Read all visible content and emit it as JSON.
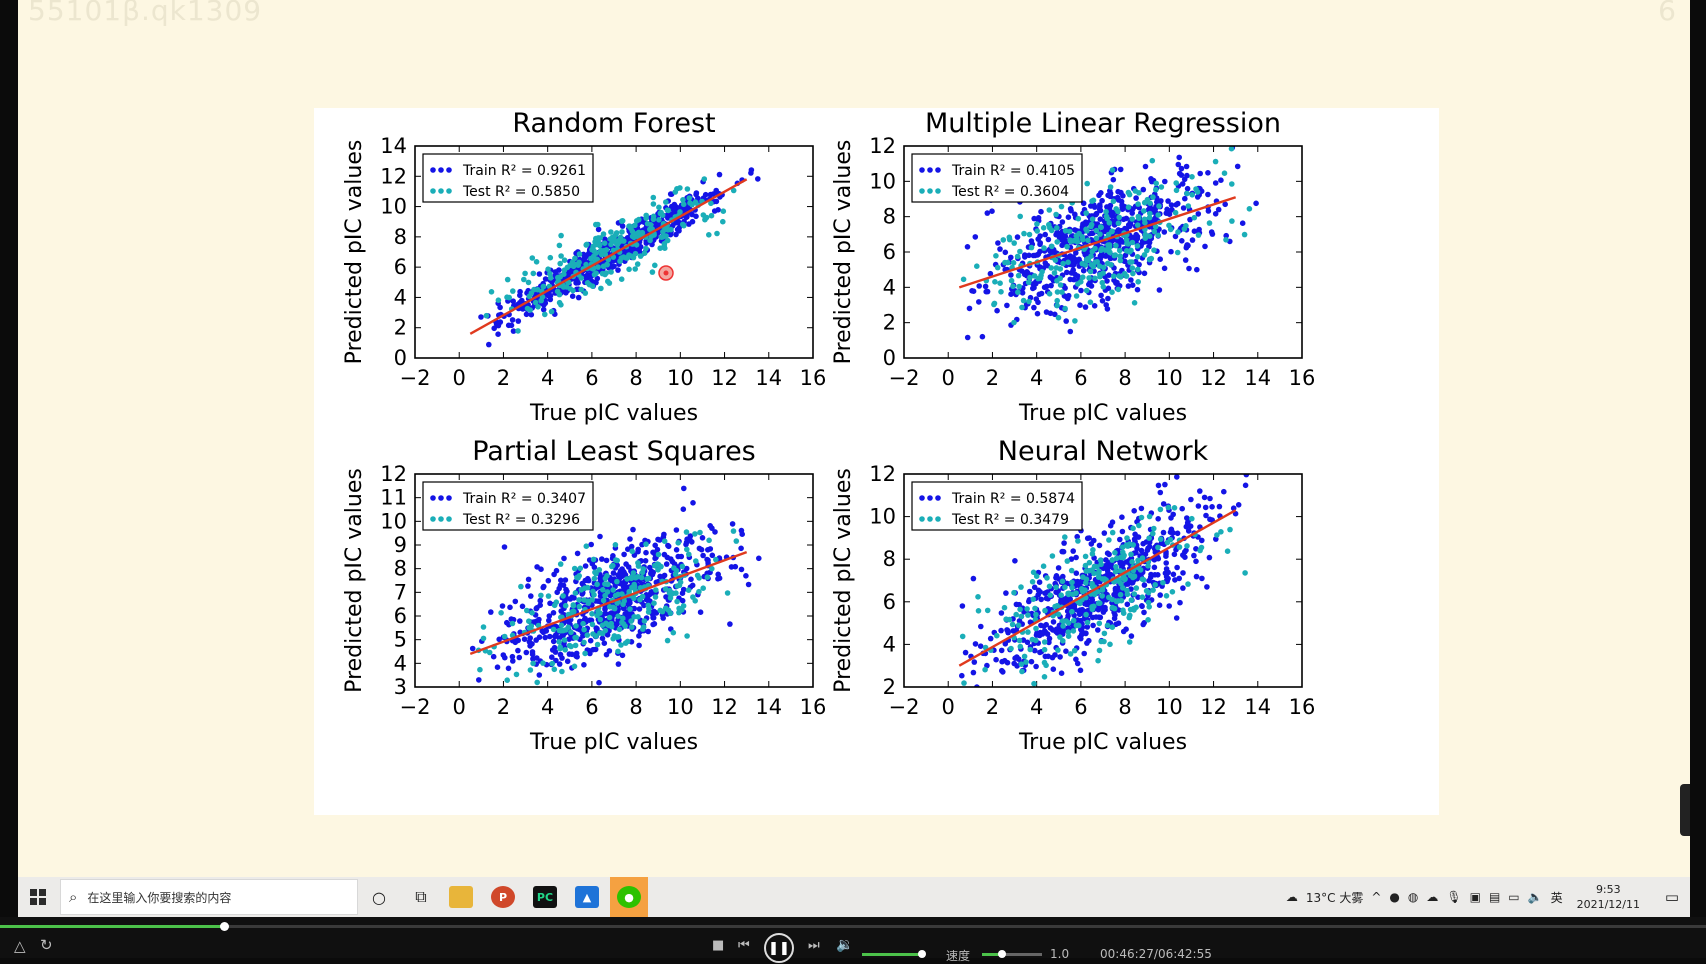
{
  "slide": {
    "title": "55101β.qk1309",
    "page_number": "6"
  },
  "chart_data": [
    {
      "type": "scatter",
      "title": "Random Forest",
      "xlabel": "True pIC values",
      "ylabel": "Predicted pIC values",
      "xlim": [
        -2,
        16
      ],
      "ylim": [
        0,
        14
      ],
      "xticks": [
        -2,
        0,
        2,
        4,
        6,
        8,
        10,
        12,
        14,
        16
      ],
      "yticks": [
        0,
        2,
        4,
        6,
        8,
        10,
        12,
        14
      ],
      "legend_position": "upper-left",
      "series": [
        {
          "name": "Train R² = 0.9261",
          "color": "#1414e6",
          "slope": 0.84,
          "intercept": 1.1,
          "spread": 0.55,
          "bulge": 0.2
        },
        {
          "name": "Test R² = 0.5850",
          "color": "#1aaeb8",
          "slope": 0.72,
          "intercept": 2.0,
          "spread": 1.0,
          "bulge": 0.3
        }
      ],
      "fit_line": {
        "x": [
          0.5,
          13
        ],
        "y": [
          1.6,
          11.8
        ],
        "color": "#e03a1e"
      }
    },
    {
      "type": "scatter",
      "title": "Multiple Linear Regression",
      "xlabel": "True pIC values",
      "ylabel": "Predicted pIC values",
      "xlim": [
        -2,
        16
      ],
      "ylim": [
        0,
        12
      ],
      "xticks": [
        -2,
        0,
        2,
        4,
        6,
        8,
        10,
        12,
        14,
        16
      ],
      "yticks": [
        0,
        2,
        4,
        6,
        8,
        10,
        12
      ],
      "legend_position": "upper-left",
      "series": [
        {
          "name": "Train R² = 0.4105",
          "color": "#1414e6",
          "slope": 0.4,
          "intercept": 3.8,
          "spread": 1.5,
          "bulge": 0.3
        },
        {
          "name": "Test R² = 0.3604",
          "color": "#1aaeb8",
          "slope": 0.38,
          "intercept": 3.9,
          "spread": 1.5,
          "bulge": 0.3
        }
      ],
      "fit_line": {
        "x": [
          0.5,
          13
        ],
        "y": [
          4.0,
          9.1
        ],
        "color": "#e03a1e"
      }
    },
    {
      "type": "scatter",
      "title": "Partial Least Squares",
      "xlabel": "True pIC values",
      "ylabel": "Predicted pIC values",
      "xlim": [
        -2,
        16
      ],
      "ylim": [
        3,
        12
      ],
      "xticks": [
        -2,
        0,
        2,
        4,
        6,
        8,
        10,
        12,
        14,
        16
      ],
      "yticks": [
        3,
        4,
        5,
        6,
        7,
        8,
        9,
        10,
        11,
        12
      ],
      "legend_position": "upper-left",
      "series": [
        {
          "name": "Train R² = 0.3407",
          "color": "#1414e6",
          "slope": 0.34,
          "intercept": 4.3,
          "spread": 1.1,
          "bulge": 0.3
        },
        {
          "name": "Test R² = 0.3296",
          "color": "#1aaeb8",
          "slope": 0.32,
          "intercept": 4.4,
          "spread": 1.1,
          "bulge": 0.3
        }
      ],
      "fit_line": {
        "x": [
          0.5,
          13
        ],
        "y": [
          4.4,
          8.7
        ],
        "color": "#e03a1e"
      }
    },
    {
      "type": "scatter",
      "title": "Neural Network",
      "xlabel": "True pIC values",
      "ylabel": "Predicted pIC values",
      "xlim": [
        -2,
        16
      ],
      "ylim": [
        2,
        12
      ],
      "xticks": [
        -2,
        0,
        2,
        4,
        6,
        8,
        10,
        12,
        14,
        16
      ],
      "yticks": [
        2,
        4,
        6,
        8,
        10,
        12
      ],
      "legend_position": "upper-left",
      "series": [
        {
          "name": "Train R² = 0.5874",
          "color": "#1414e6",
          "slope": 0.58,
          "intercept": 2.6,
          "spread": 1.2,
          "bulge": 0.3
        },
        {
          "name": "Test R² = 0.3479",
          "color": "#1aaeb8",
          "slope": 0.5,
          "intercept": 3.0,
          "spread": 1.3,
          "bulge": 0.3
        }
      ],
      "fit_line": {
        "x": [
          0.5,
          13
        ],
        "y": [
          3.0,
          10.3
        ],
        "color": "#e03a1e"
      }
    }
  ],
  "taskbar": {
    "search_placeholder": "在这里输入你要搜索的内容",
    "apps": [
      {
        "icon": "file-explorer-icon",
        "color": "#e8b53a"
      },
      {
        "icon": "powerpoint-icon",
        "color": "#d0482a",
        "glyph": "P"
      },
      {
        "icon": "pycharm-icon",
        "color": "#21d789",
        "glyph": "PC"
      },
      {
        "icon": "photos-icon",
        "color": "#1e73d8",
        "glyph": "▲"
      },
      {
        "icon": "wechat-icon",
        "color": "#2dc100",
        "glyph": "●"
      }
    ],
    "weather": "13°C 大雾",
    "ime": "英",
    "time": "9:53",
    "date": "2021/12/11"
  },
  "player": {
    "progress": 0.131,
    "speed_label": "速度",
    "speed_value": "1.0",
    "time": "00:46:27/06:42:55"
  },
  "colors": {
    "slide_bg": "#fdf7e2",
    "train": "#1414e6",
    "test": "#1aaeb8",
    "fit": "#e03a1e",
    "active_app": "#f5a141",
    "progress": "#4cc24a"
  }
}
